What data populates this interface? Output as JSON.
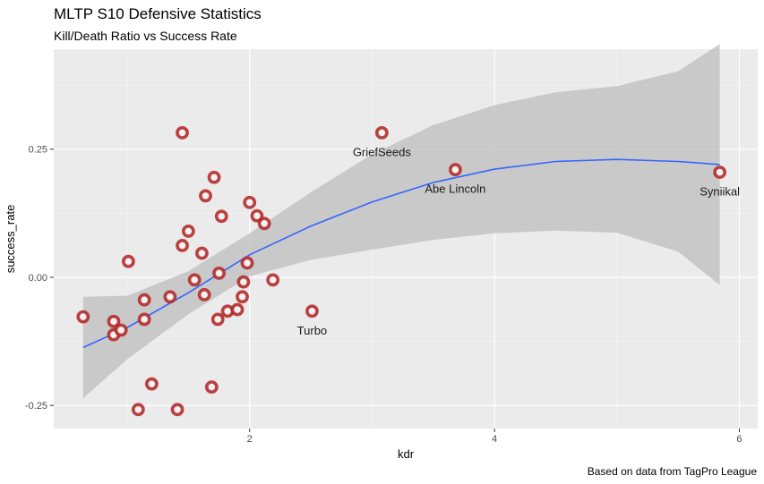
{
  "chart_data": {
    "type": "scatter",
    "title": "MLTP S10 Defensive Statistics",
    "subtitle": "Kill/Death Ratio vs Success Rate",
    "caption": "Based on data from TagPro League",
    "xlabel": "kdr",
    "ylabel": "success_rate",
    "xlim": [
      0.4,
      6.15
    ],
    "ylim": [
      -0.295,
      0.445
    ],
    "x_ticks": [
      2,
      4,
      6
    ],
    "x_tick_labels": [
      "2",
      "4",
      "6"
    ],
    "y_ticks": [
      -0.25,
      0.0,
      0.25
    ],
    "y_tick_labels": [
      "-0.25",
      "0.00",
      "0.25"
    ],
    "grid": true,
    "points": [
      {
        "x": 0.64,
        "y": -0.077,
        "label": ""
      },
      {
        "x": 0.89,
        "y": -0.086,
        "label": ""
      },
      {
        "x": 0.89,
        "y": -0.112,
        "label": ""
      },
      {
        "x": 0.95,
        "y": -0.103,
        "label": ""
      },
      {
        "x": 1.01,
        "y": 0.031,
        "label": ""
      },
      {
        "x": 1.09,
        "y": -0.258,
        "label": ""
      },
      {
        "x": 1.14,
        "y": -0.044,
        "label": ""
      },
      {
        "x": 1.14,
        "y": -0.082,
        "label": ""
      },
      {
        "x": 1.2,
        "y": -0.208,
        "label": ""
      },
      {
        "x": 1.35,
        "y": -0.038,
        "label": ""
      },
      {
        "x": 1.41,
        "y": -0.258,
        "label": ""
      },
      {
        "x": 1.45,
        "y": 0.282,
        "label": ""
      },
      {
        "x": 1.45,
        "y": 0.062,
        "label": ""
      },
      {
        "x": 1.5,
        "y": 0.09,
        "label": ""
      },
      {
        "x": 1.55,
        "y": -0.005,
        "label": ""
      },
      {
        "x": 1.61,
        "y": 0.047,
        "label": ""
      },
      {
        "x": 1.63,
        "y": -0.034,
        "label": ""
      },
      {
        "x": 1.64,
        "y": 0.159,
        "label": ""
      },
      {
        "x": 1.69,
        "y": -0.214,
        "label": ""
      },
      {
        "x": 1.71,
        "y": 0.195,
        "label": ""
      },
      {
        "x": 1.74,
        "y": -0.082,
        "label": ""
      },
      {
        "x": 1.75,
        "y": 0.008,
        "label": ""
      },
      {
        "x": 1.77,
        "y": 0.119,
        "label": ""
      },
      {
        "x": 1.82,
        "y": -0.066,
        "label": ""
      },
      {
        "x": 1.9,
        "y": -0.063,
        "label": ""
      },
      {
        "x": 1.94,
        "y": -0.038,
        "label": ""
      },
      {
        "x": 1.95,
        "y": -0.009,
        "label": ""
      },
      {
        "x": 1.98,
        "y": 0.028,
        "label": ""
      },
      {
        "x": 2.0,
        "y": 0.146,
        "label": ""
      },
      {
        "x": 2.06,
        "y": 0.12,
        "label": ""
      },
      {
        "x": 2.12,
        "y": 0.105,
        "label": ""
      },
      {
        "x": 2.19,
        "y": -0.005,
        "label": ""
      },
      {
        "x": 2.51,
        "y": -0.066,
        "label": "Turbo"
      },
      {
        "x": 3.08,
        "y": 0.282,
        "label": "GriefSeeds"
      },
      {
        "x": 3.68,
        "y": 0.21,
        "label": "Abe Lincoln"
      },
      {
        "x": 5.84,
        "y": 0.205,
        "label": "Syniikal"
      }
    ],
    "trend": {
      "method": "loess",
      "x": [
        0.64,
        1.0,
        1.5,
        2.0,
        2.5,
        3.0,
        3.5,
        4.0,
        4.5,
        5.0,
        5.5,
        5.84
      ],
      "y": [
        -0.137,
        -0.098,
        -0.03,
        0.044,
        0.1,
        0.147,
        0.185,
        0.211,
        0.226,
        0.23,
        0.226,
        0.22
      ],
      "lower": [
        -0.236,
        -0.16,
        -0.072,
        0.002,
        0.034,
        0.054,
        0.073,
        0.086,
        0.091,
        0.087,
        0.05,
        -0.015
      ],
      "upper": [
        -0.038,
        -0.036,
        0.012,
        0.086,
        0.166,
        0.24,
        0.297,
        0.336,
        0.361,
        0.373,
        0.402,
        0.455
      ]
    },
    "colors": {
      "panel_bg": "#ebebeb",
      "grid_major": "#ffffff",
      "grid_minor": "#f5f5f5",
      "point_outline": "#b22222",
      "point_fill": "#f2f2f2",
      "trend_line": "#3366ff",
      "ribbon": "#bdbdbd"
    }
  }
}
